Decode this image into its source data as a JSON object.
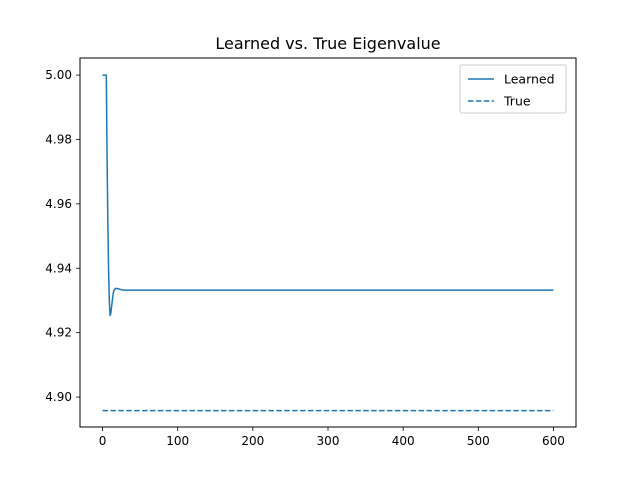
{
  "chart_data": {
    "type": "line",
    "title": "Learned vs. True Eigenvalue",
    "xlabel": "",
    "ylabel": "",
    "xlim": [
      -30,
      630
    ],
    "ylim": [
      4.8907,
      5.0053
    ],
    "xticks": [
      0,
      100,
      200,
      300,
      400,
      500,
      600
    ],
    "yticks": [
      4.9,
      4.92,
      4.94,
      4.96,
      4.98,
      5.0
    ],
    "grid": false,
    "legend": "upper right",
    "series": [
      {
        "name": "Learned",
        "style": "solid",
        "color": "#1f77b4",
        "points": [
          [
            0,
            5.0
          ],
          [
            5,
            5.0
          ],
          [
            6,
            4.975
          ],
          [
            7,
            4.955
          ],
          [
            8,
            4.94
          ],
          [
            9,
            4.93
          ],
          [
            10,
            4.9253
          ],
          [
            11,
            4.926
          ],
          [
            12,
            4.928
          ],
          [
            13,
            4.93
          ],
          [
            14,
            4.932
          ],
          [
            15,
            4.933
          ],
          [
            17,
            4.9337
          ],
          [
            20,
            4.9337
          ],
          [
            24,
            4.9334
          ],
          [
            28,
            4.9332
          ],
          [
            35,
            4.9332
          ],
          [
            50,
            4.9332
          ],
          [
            100,
            4.9332
          ],
          [
            200,
            4.9332
          ],
          [
            300,
            4.9332
          ],
          [
            400,
            4.9332
          ],
          [
            500,
            4.9332
          ],
          [
            600,
            4.9332
          ]
        ]
      },
      {
        "name": "True",
        "style": "dashed",
        "color": "#1f77b4",
        "points": [
          [
            0,
            4.8958
          ],
          [
            600,
            4.8958
          ]
        ]
      }
    ]
  }
}
